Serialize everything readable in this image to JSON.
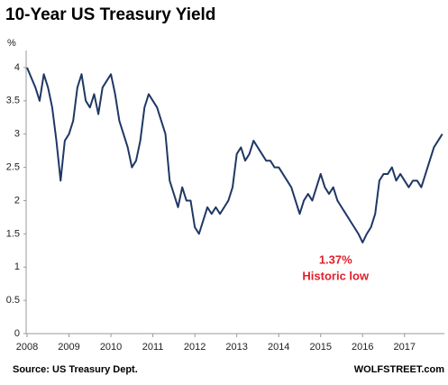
{
  "chart_data": {
    "type": "line",
    "title": "10-Year US Treasury Yield",
    "y_unit": "%",
    "source": "Source: US Treasury Dept.",
    "credit": "WOLFSTREET.com",
    "annotation": {
      "value_label": "1.37%",
      "text": "Historic low",
      "x": 2016.0,
      "y": 1.37
    },
    "xlim": [
      2008,
      2017.95
    ],
    "xticks": [
      2008,
      2009,
      2010,
      2011,
      2012,
      2013,
      2014,
      2015,
      2016,
      2017
    ],
    "ylim": [
      0,
      4.25
    ],
    "yticks": [
      0,
      0.5,
      1,
      1.5,
      2,
      2.5,
      3,
      3.5,
      4
    ],
    "grid": false,
    "series": [
      {
        "name": "10-Year US Treasury Yield",
        "color": "#1f3864",
        "x": [
          2008.0,
          2008.1,
          2008.2,
          2008.3,
          2008.4,
          2008.5,
          2008.6,
          2008.7,
          2008.8,
          2008.9,
          2009.0,
          2009.1,
          2009.2,
          2009.3,
          2009.4,
          2009.5,
          2009.6,
          2009.7,
          2009.8,
          2009.9,
          2010.0,
          2010.1,
          2010.2,
          2010.3,
          2010.4,
          2010.5,
          2010.6,
          2010.7,
          2010.8,
          2010.9,
          2011.0,
          2011.1,
          2011.2,
          2011.3,
          2011.4,
          2011.5,
          2011.6,
          2011.7,
          2011.8,
          2011.9,
          2012.0,
          2012.1,
          2012.2,
          2012.3,
          2012.4,
          2012.5,
          2012.6,
          2012.7,
          2012.8,
          2012.9,
          2013.0,
          2013.1,
          2013.2,
          2013.3,
          2013.4,
          2013.5,
          2013.6,
          2013.7,
          2013.8,
          2013.9,
          2014.0,
          2014.1,
          2014.2,
          2014.3,
          2014.4,
          2014.5,
          2014.6,
          2014.7,
          2014.8,
          2014.9,
          2015.0,
          2015.1,
          2015.2,
          2015.3,
          2015.4,
          2015.5,
          2015.6,
          2015.7,
          2015.8,
          2015.9,
          2016.0,
          2016.1,
          2016.2,
          2016.3,
          2016.4,
          2016.5,
          2016.6,
          2016.7,
          2016.8,
          2016.9,
          2017.0,
          2017.1,
          2017.2,
          2017.3,
          2017.4,
          2017.5,
          2017.6,
          2017.7,
          2017.8,
          2017.9
        ],
        "values": [
          4.0,
          3.85,
          3.7,
          3.5,
          3.9,
          3.7,
          3.4,
          2.9,
          2.3,
          2.9,
          3.0,
          3.2,
          3.7,
          3.9,
          3.5,
          3.4,
          3.6,
          3.3,
          3.7,
          3.8,
          3.9,
          3.6,
          3.2,
          3.0,
          2.8,
          2.5,
          2.6,
          2.9,
          3.4,
          3.6,
          3.5,
          3.4,
          3.2,
          3.0,
          2.3,
          2.1,
          1.9,
          2.2,
          2.0,
          2.0,
          1.6,
          1.5,
          1.7,
          1.9,
          1.8,
          1.9,
          1.8,
          1.9,
          2.0,
          2.2,
          2.7,
          2.8,
          2.6,
          2.7,
          2.9,
          2.8,
          2.7,
          2.6,
          2.6,
          2.5,
          2.5,
          2.4,
          2.3,
          2.2,
          2.0,
          1.8,
          2.0,
          2.1,
          2.0,
          2.2,
          2.4,
          2.2,
          2.1,
          2.2,
          2.0,
          1.9,
          1.8,
          1.7,
          1.6,
          1.5,
          1.37,
          1.5,
          1.6,
          1.8,
          2.3,
          2.4,
          2.4,
          2.5,
          2.3,
          2.4,
          2.3,
          2.2,
          2.3,
          2.3,
          2.2,
          2.4,
          2.6,
          2.8,
          2.9,
          3.0
        ]
      }
    ]
  }
}
